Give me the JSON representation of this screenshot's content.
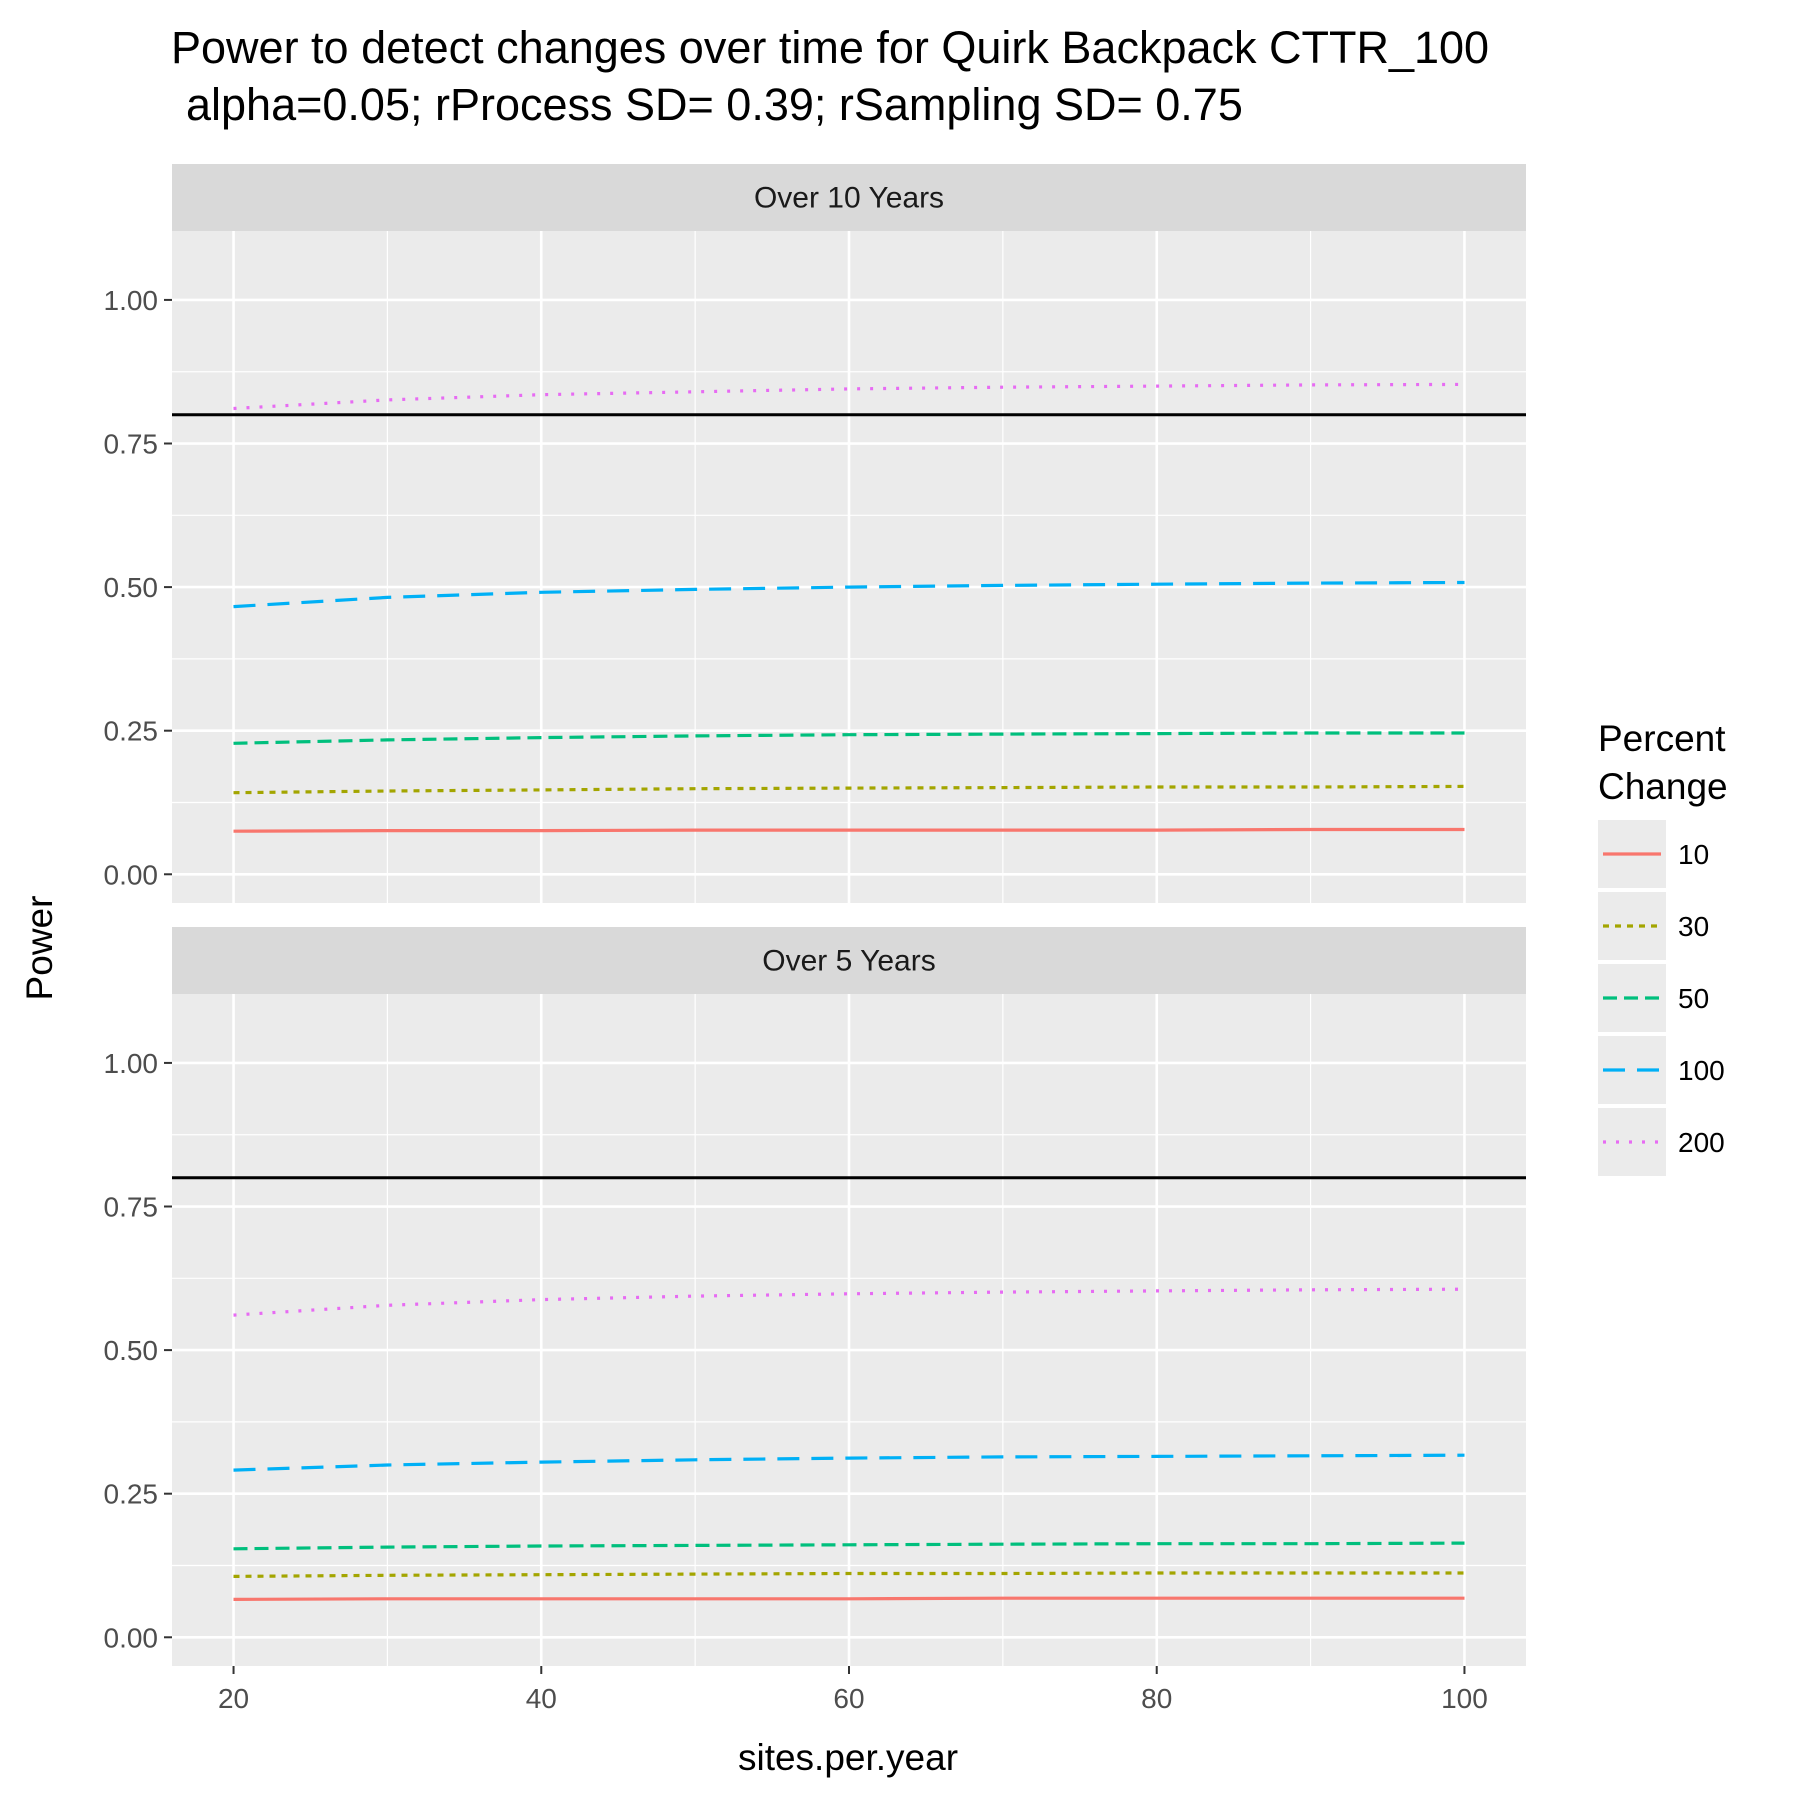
{
  "chart_data": {
    "type": "line",
    "title_lines": [
      "Power to detect changes over time for Quirk Backpack  CTTR_100",
      "alpha=0.05; rProcess SD= 0.39; rSampling SD= 0.75"
    ],
    "xlabel": "sites.per.year",
    "ylabel": "Power",
    "xlim": [
      16,
      104
    ],
    "ylim": [
      -0.05,
      1.12
    ],
    "x_ticks": [
      "20",
      "40",
      "60",
      "80",
      "100"
    ],
    "y_ticks": [
      "0.00",
      "0.25",
      "0.50",
      "0.75",
      "1.00"
    ],
    "reference_line": 0.8,
    "legend": {
      "title_lines": [
        "Percent",
        "Change"
      ],
      "position": "right"
    },
    "x": [
      20,
      30,
      40,
      50,
      60,
      70,
      80,
      90,
      100
    ],
    "panels": [
      {
        "label": "Over 10 Years",
        "series": [
          {
            "name": "10",
            "color": "#F8766D",
            "dash": "solid",
            "values": [
              0.075,
              0.076,
              0.076,
              0.077,
              0.077,
              0.077,
              0.077,
              0.078,
              0.078
            ]
          },
          {
            "name": "30",
            "color": "#A3A500",
            "dash": "dotted",
            "values": [
              0.142,
              0.145,
              0.147,
              0.149,
              0.15,
              0.151,
              0.152,
              0.152,
              0.153
            ]
          },
          {
            "name": "50",
            "color": "#00BF7D",
            "dash": "dashed",
            "values": [
              0.228,
              0.234,
              0.238,
              0.241,
              0.243,
              0.244,
              0.245,
              0.246,
              0.246
            ]
          },
          {
            "name": "100",
            "color": "#00B0F6",
            "dash": "longdash",
            "values": [
              0.466,
              0.482,
              0.491,
              0.496,
              0.5,
              0.503,
              0.505,
              0.507,
              0.508
            ]
          },
          {
            "name": "200",
            "color": "#E76BF3",
            "dash": "dotted2",
            "values": [
              0.811,
              0.826,
              0.835,
              0.84,
              0.845,
              0.848,
              0.85,
              0.852,
              0.853
            ]
          }
        ]
      },
      {
        "label": "Over 5 Years",
        "series": [
          {
            "name": "10",
            "color": "#F8766D",
            "dash": "solid",
            "values": [
              0.066,
              0.067,
              0.067,
              0.067,
              0.067,
              0.068,
              0.068,
              0.068,
              0.068
            ]
          },
          {
            "name": "30",
            "color": "#A3A500",
            "dash": "dotted",
            "values": [
              0.106,
              0.108,
              0.109,
              0.11,
              0.111,
              0.111,
              0.112,
              0.112,
              0.112
            ]
          },
          {
            "name": "50",
            "color": "#00BF7D",
            "dash": "dashed",
            "values": [
              0.154,
              0.157,
              0.159,
              0.16,
              0.161,
              0.162,
              0.163,
              0.163,
              0.164
            ]
          },
          {
            "name": "100",
            "color": "#00B0F6",
            "dash": "longdash",
            "values": [
              0.291,
              0.3,
              0.305,
              0.309,
              0.312,
              0.314,
              0.315,
              0.316,
              0.317
            ]
          },
          {
            "name": "200",
            "color": "#E76BF3",
            "dash": "dotted2",
            "values": [
              0.561,
              0.578,
              0.588,
              0.594,
              0.598,
              0.601,
              0.603,
              0.605,
              0.606
            ]
          }
        ]
      }
    ]
  }
}
